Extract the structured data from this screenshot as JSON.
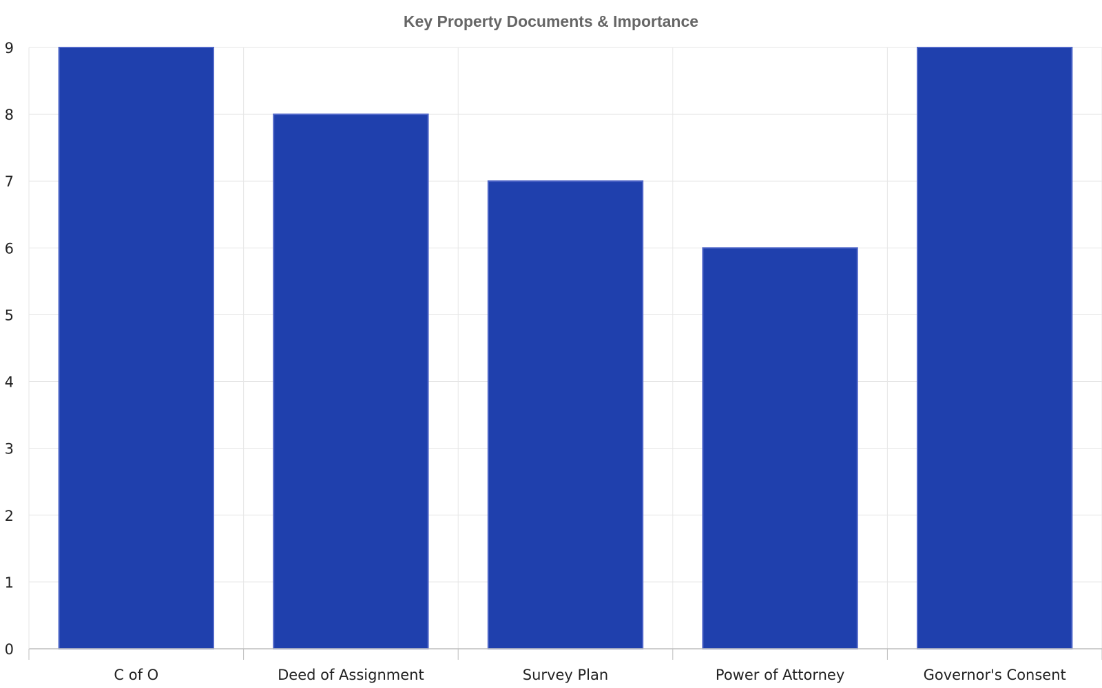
{
  "chart_data": {
    "type": "bar",
    "title": "Key Property Documents & Importance",
    "categories": [
      "C of O",
      "Deed of Assignment",
      "Survey Plan",
      "Power of Attorney",
      "Governor's Consent"
    ],
    "values": [
      9,
      8,
      7,
      6,
      9
    ],
    "xlabel": "",
    "ylabel": "",
    "ylim": [
      0,
      9
    ],
    "yticks": [
      0,
      1,
      2,
      3,
      4,
      5,
      6,
      7,
      8,
      9
    ],
    "grid": true,
    "legend": "none",
    "colors": {
      "bar_fill": "#1f40ad",
      "bar_outline": "#4f66c8",
      "grid": "#e6e6e6",
      "axis": "#bdbdbd",
      "title": "#666666",
      "tick_text": "#222222"
    }
  }
}
